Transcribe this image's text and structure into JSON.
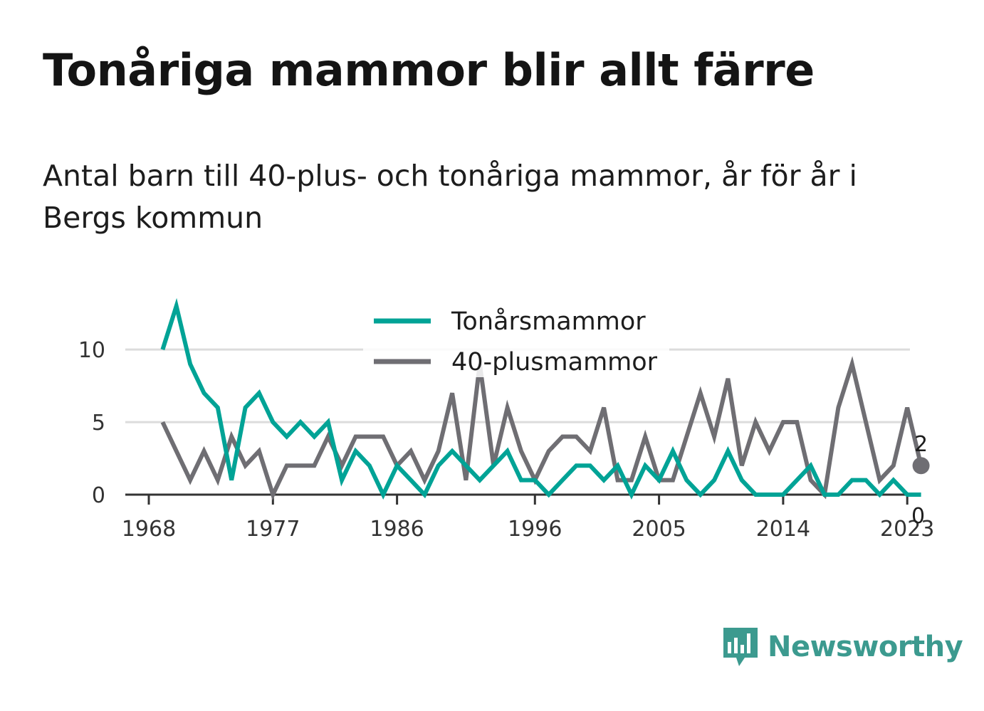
{
  "title": "Tonåriga mammor blir allt färre",
  "subtitle": "Antal barn till 40-plus- och tonåriga mammor, år för år i Bergs kommun",
  "brand": {
    "name": "Newsworthy",
    "color": "#3c9a8f",
    "icon": "newsworthy-chat-bars-icon"
  },
  "chart_data": {
    "type": "line",
    "x": [
      1969,
      1970,
      1971,
      1972,
      1973,
      1974,
      1975,
      1976,
      1977,
      1978,
      1979,
      1980,
      1981,
      1982,
      1983,
      1984,
      1985,
      1986,
      1987,
      1988,
      1989,
      1990,
      1991,
      1992,
      1993,
      1994,
      1995,
      1996,
      1997,
      1998,
      1999,
      2000,
      2001,
      2002,
      2003,
      2004,
      2005,
      2006,
      2007,
      2008,
      2009,
      2010,
      2011,
      2012,
      2013,
      2014,
      2015,
      2016,
      2017,
      2018,
      2019,
      2020,
      2021,
      2022,
      2023,
      2024
    ],
    "series": [
      {
        "name": "Tonårsmammor",
        "color": "#00a396",
        "values": [
          10,
          13,
          9,
          7,
          6,
          1,
          6,
          7,
          5,
          4,
          5,
          4,
          5,
          1,
          3,
          2,
          0,
          2,
          1,
          0,
          2,
          3,
          2,
          1,
          2,
          3,
          1,
          1,
          0,
          1,
          2,
          2,
          1,
          2,
          0,
          2,
          1,
          3,
          1,
          0,
          1,
          3,
          1,
          0,
          0,
          0,
          1,
          2,
          0,
          0,
          1,
          1,
          0,
          1,
          0,
          0
        ]
      },
      {
        "name": "40-plusmammor",
        "color": "#6f6e73",
        "values": [
          5,
          3,
          1,
          3,
          1,
          4,
          2,
          3,
          0,
          2,
          2,
          2,
          4,
          2,
          4,
          4,
          4,
          2,
          3,
          1,
          3,
          7,
          1,
          9,
          2,
          6,
          3,
          1,
          3,
          4,
          4,
          3,
          6,
          1,
          1,
          4,
          1,
          1,
          4,
          7,
          4,
          8,
          2,
          5,
          3,
          5,
          5,
          1,
          0,
          6,
          9,
          5,
          1,
          2,
          6,
          2
        ]
      }
    ],
    "x_ticks": [
      1968,
      1977,
      1986,
      1996,
      2005,
      2014,
      2023
    ],
    "y_ticks": [
      0,
      5,
      10
    ],
    "xlim": [
      1968,
      2024.9
    ],
    "ylim": [
      0,
      13
    ],
    "end_labels": [
      "2",
      "0"
    ],
    "grid": "horizontal",
    "legend_position": "top-center"
  }
}
